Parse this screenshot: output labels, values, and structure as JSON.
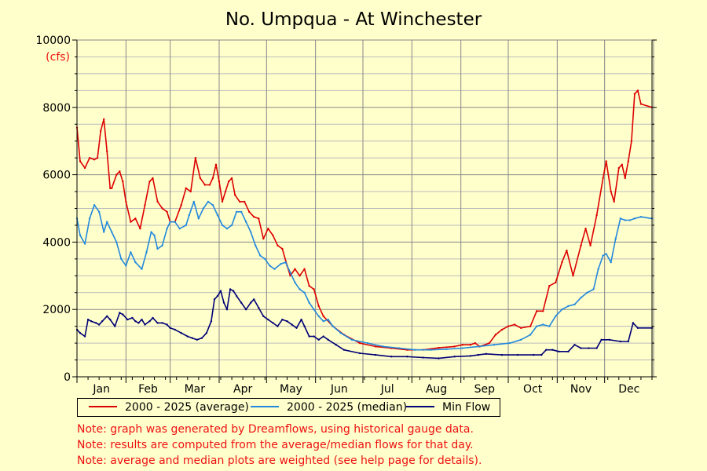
{
  "chart_data": {
    "type": "line",
    "title": "No. Umpqua - At Winchester",
    "ylabel": "(cfs)",
    "ylim": [
      0,
      10000
    ],
    "yticks": [
      0,
      2000,
      4000,
      6000,
      8000,
      10000
    ],
    "months": [
      "Jan",
      "Feb",
      "Mar",
      "Apr",
      "May",
      "Jun",
      "Jul",
      "Aug",
      "Sep",
      "Oct",
      "Nov",
      "Dec"
    ],
    "legend_position": "bottom",
    "grid": true,
    "series": [
      {
        "name": "2000 - 2025 (average)",
        "color": "#dd0000",
        "points": [
          [
            1,
            7400
          ],
          [
            3,
            6400
          ],
          [
            6,
            6200
          ],
          [
            9,
            6500
          ],
          [
            12,
            6450
          ],
          [
            14,
            6500
          ],
          [
            16,
            7300
          ],
          [
            18,
            7650
          ],
          [
            20,
            6700
          ],
          [
            22,
            5600
          ],
          [
            23,
            5600
          ],
          [
            26,
            6000
          ],
          [
            28,
            6100
          ],
          [
            30,
            5800
          ],
          [
            32,
            5200
          ],
          [
            35,
            4600
          ],
          [
            38,
            4700
          ],
          [
            41,
            4400
          ],
          [
            44,
            5100
          ],
          [
            47,
            5800
          ],
          [
            49,
            5900
          ],
          [
            52,
            5200
          ],
          [
            55,
            5000
          ],
          [
            58,
            4900
          ],
          [
            60,
            4600
          ],
          [
            63,
            4600
          ],
          [
            67,
            5100
          ],
          [
            70,
            5600
          ],
          [
            73,
            5500
          ],
          [
            76,
            6500
          ],
          [
            79,
            5900
          ],
          [
            82,
            5700
          ],
          [
            85,
            5700
          ],
          [
            87,
            5900
          ],
          [
            89,
            6300
          ],
          [
            91,
            5800
          ],
          [
            93,
            5200
          ],
          [
            95,
            5500
          ],
          [
            97,
            5800
          ],
          [
            99,
            5900
          ],
          [
            101,
            5400
          ],
          [
            104,
            5200
          ],
          [
            107,
            5200
          ],
          [
            110,
            4900
          ],
          [
            113,
            4750
          ],
          [
            116,
            4700
          ],
          [
            119,
            4100
          ],
          [
            122,
            4400
          ],
          [
            125,
            4200
          ],
          [
            128,
            3900
          ],
          [
            131,
            3800
          ],
          [
            134,
            3300
          ],
          [
            136,
            3000
          ],
          [
            139,
            3200
          ],
          [
            142,
            3000
          ],
          [
            145,
            3200
          ],
          [
            148,
            2700
          ],
          [
            151,
            2600
          ],
          [
            154,
            2100
          ],
          [
            157,
            1800
          ],
          [
            163,
            1500
          ],
          [
            170,
            1250
          ],
          [
            180,
            1000
          ],
          [
            190,
            900
          ],
          [
            200,
            850
          ],
          [
            210,
            800
          ],
          [
            220,
            800
          ],
          [
            230,
            860
          ],
          [
            240,
            900
          ],
          [
            245,
            950
          ],
          [
            250,
            950
          ],
          [
            253,
            1000
          ],
          [
            256,
            900
          ],
          [
            262,
            1000
          ],
          [
            266,
            1250
          ],
          [
            270,
            1400
          ],
          [
            274,
            1500
          ],
          [
            278,
            1550
          ],
          [
            282,
            1450
          ],
          [
            288,
            1500
          ],
          [
            292,
            1950
          ],
          [
            296,
            1950
          ],
          [
            300,
            2700
          ],
          [
            304,
            2800
          ],
          [
            308,
            3400
          ],
          [
            311,
            3750
          ],
          [
            315,
            3000
          ],
          [
            320,
            3900
          ],
          [
            323,
            4400
          ],
          [
            326,
            3900
          ],
          [
            330,
            4800
          ],
          [
            334,
            5900
          ],
          [
            336,
            6400
          ],
          [
            339,
            5500
          ],
          [
            341,
            5200
          ],
          [
            344,
            6200
          ],
          [
            346,
            6300
          ],
          [
            348,
            5900
          ],
          [
            350,
            6400
          ],
          [
            352,
            7000
          ],
          [
            354,
            8400
          ],
          [
            356,
            8500
          ],
          [
            358,
            8100
          ],
          [
            365,
            8000
          ]
        ]
      },
      {
        "name": "2000 - 2025 (median)",
        "color": "#2288dd",
        "points": [
          [
            1,
            4700
          ],
          [
            3,
            4200
          ],
          [
            6,
            3950
          ],
          [
            9,
            4700
          ],
          [
            12,
            5100
          ],
          [
            15,
            4900
          ],
          [
            18,
            4300
          ],
          [
            20,
            4600
          ],
          [
            23,
            4300
          ],
          [
            26,
            4000
          ],
          [
            29,
            3500
          ],
          [
            32,
            3300
          ],
          [
            35,
            3700
          ],
          [
            38,
            3400
          ],
          [
            42,
            3200
          ],
          [
            45,
            3700
          ],
          [
            48,
            4300
          ],
          [
            50,
            4200
          ],
          [
            52,
            3800
          ],
          [
            55,
            3900
          ],
          [
            58,
            4400
          ],
          [
            60,
            4600
          ],
          [
            63,
            4600
          ],
          [
            66,
            4400
          ],
          [
            70,
            4500
          ],
          [
            72,
            4800
          ],
          [
            75,
            5200
          ],
          [
            78,
            4700
          ],
          [
            81,
            5000
          ],
          [
            84,
            5200
          ],
          [
            87,
            5100
          ],
          [
            90,
            4800
          ],
          [
            93,
            4500
          ],
          [
            96,
            4400
          ],
          [
            99,
            4500
          ],
          [
            102,
            4900
          ],
          [
            105,
            4900
          ],
          [
            108,
            4600
          ],
          [
            111,
            4300
          ],
          [
            114,
            3900
          ],
          [
            117,
            3600
          ],
          [
            120,
            3500
          ],
          [
            123,
            3300
          ],
          [
            126,
            3200
          ],
          [
            130,
            3350
          ],
          [
            133,
            3400
          ],
          [
            136,
            3100
          ],
          [
            139,
            2800
          ],
          [
            142,
            2600
          ],
          [
            145,
            2500
          ],
          [
            148,
            2200
          ],
          [
            151,
            2000
          ],
          [
            154,
            1800
          ],
          [
            157,
            1650
          ],
          [
            160,
            1700
          ],
          [
            163,
            1500
          ],
          [
            168,
            1300
          ],
          [
            175,
            1100
          ],
          [
            185,
            1000
          ],
          [
            195,
            900
          ],
          [
            205,
            850
          ],
          [
            215,
            800
          ],
          [
            225,
            800
          ],
          [
            235,
            820
          ],
          [
            245,
            850
          ],
          [
            255,
            900
          ],
          [
            265,
            950
          ],
          [
            275,
            1000
          ],
          [
            282,
            1100
          ],
          [
            288,
            1250
          ],
          [
            292,
            1500
          ],
          [
            296,
            1550
          ],
          [
            300,
            1500
          ],
          [
            304,
            1800
          ],
          [
            308,
            2000
          ],
          [
            312,
            2100
          ],
          [
            316,
            2150
          ],
          [
            320,
            2350
          ],
          [
            324,
            2500
          ],
          [
            328,
            2600
          ],
          [
            331,
            3200
          ],
          [
            334,
            3600
          ],
          [
            336,
            3650
          ],
          [
            339,
            3400
          ],
          [
            342,
            4100
          ],
          [
            345,
            4700
          ],
          [
            348,
            4650
          ],
          [
            351,
            4650
          ],
          [
            354,
            4700
          ],
          [
            358,
            4750
          ],
          [
            365,
            4700
          ]
        ]
      },
      {
        "name": "Min Flow",
        "color": "#000077",
        "points": [
          [
            1,
            1400
          ],
          [
            3,
            1300
          ],
          [
            6,
            1200
          ],
          [
            8,
            1700
          ],
          [
            10,
            1650
          ],
          [
            13,
            1600
          ],
          [
            15,
            1550
          ],
          [
            17,
            1650
          ],
          [
            20,
            1800
          ],
          [
            22,
            1700
          ],
          [
            25,
            1500
          ],
          [
            28,
            1900
          ],
          [
            30,
            1850
          ],
          [
            33,
            1700
          ],
          [
            36,
            1750
          ],
          [
            38,
            1650
          ],
          [
            40,
            1600
          ],
          [
            42,
            1700
          ],
          [
            44,
            1550
          ],
          [
            47,
            1650
          ],
          [
            49,
            1750
          ],
          [
            52,
            1600
          ],
          [
            55,
            1600
          ],
          [
            58,
            1550
          ],
          [
            60,
            1450
          ],
          [
            63,
            1400
          ],
          [
            67,
            1300
          ],
          [
            71,
            1200
          ],
          [
            74,
            1150
          ],
          [
            77,
            1100
          ],
          [
            80,
            1150
          ],
          [
            83,
            1300
          ],
          [
            86,
            1650
          ],
          [
            88,
            2300
          ],
          [
            90,
            2400
          ],
          [
            92,
            2550
          ],
          [
            94,
            2200
          ],
          [
            96,
            2000
          ],
          [
            98,
            2600
          ],
          [
            100,
            2550
          ],
          [
            102,
            2400
          ],
          [
            105,
            2200
          ],
          [
            108,
            2000
          ],
          [
            111,
            2200
          ],
          [
            113,
            2300
          ],
          [
            116,
            2050
          ],
          [
            119,
            1800
          ],
          [
            122,
            1700
          ],
          [
            125,
            1600
          ],
          [
            128,
            1500
          ],
          [
            131,
            1700
          ],
          [
            134,
            1650
          ],
          [
            137,
            1550
          ],
          [
            140,
            1450
          ],
          [
            143,
            1700
          ],
          [
            145,
            1500
          ],
          [
            148,
            1200
          ],
          [
            151,
            1200
          ],
          [
            154,
            1100
          ],
          [
            157,
            1200
          ],
          [
            160,
            1100
          ],
          [
            165,
            950
          ],
          [
            170,
            800
          ],
          [
            180,
            700
          ],
          [
            190,
            650
          ],
          [
            200,
            600
          ],
          [
            210,
            600
          ],
          [
            220,
            570
          ],
          [
            230,
            550
          ],
          [
            240,
            600
          ],
          [
            250,
            620
          ],
          [
            255,
            650
          ],
          [
            260,
            680
          ],
          [
            270,
            650
          ],
          [
            280,
            650
          ],
          [
            290,
            650
          ],
          [
            295,
            650
          ],
          [
            298,
            800
          ],
          [
            302,
            800
          ],
          [
            306,
            750
          ],
          [
            312,
            750
          ],
          [
            316,
            950
          ],
          [
            320,
            850
          ],
          [
            325,
            850
          ],
          [
            330,
            850
          ],
          [
            333,
            1100
          ],
          [
            338,
            1100
          ],
          [
            345,
            1050
          ],
          [
            350,
            1050
          ],
          [
            353,
            1600
          ],
          [
            356,
            1450
          ],
          [
            365,
            1450
          ]
        ]
      }
    ]
  },
  "notes": [
    "Note: graph was generated by Dreamflows, using historical gauge data.",
    "Note: results are computed from the average/median flows for that day.",
    "Note: average and median plots are weighted (see help page for details)."
  ]
}
